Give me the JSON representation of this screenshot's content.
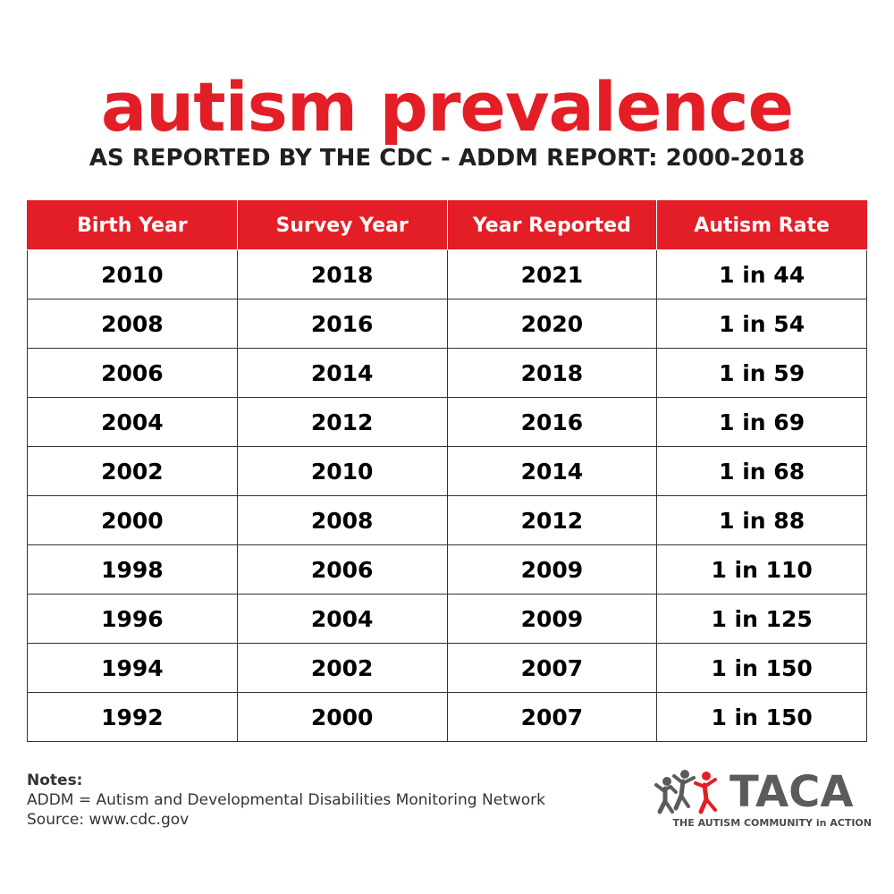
{
  "title": "autism prevalence",
  "subtitle": "AS REPORTED BY THE CDC - ADDM REPORT: 2000-2018",
  "table": {
    "headers": [
      "Birth Year",
      "Survey Year",
      "Year Reported",
      "Autism Rate"
    ],
    "rows": [
      [
        "2010",
        "2018",
        "2021",
        "1 in 44"
      ],
      [
        "2008",
        "2016",
        "2020",
        "1 in 54"
      ],
      [
        "2006",
        "2014",
        "2018",
        "1 in 59"
      ],
      [
        "2004",
        "2012",
        "2016",
        "1 in 69"
      ],
      [
        "2002",
        "2010",
        "2014",
        "1 in 68"
      ],
      [
        "2000",
        "2008",
        "2012",
        "1 in 88"
      ],
      [
        "1998",
        "2006",
        "2009",
        "1 in 110"
      ],
      [
        "1996",
        "2004",
        "2009",
        "1 in 125"
      ],
      [
        "1994",
        "2002",
        "2007",
        "1 in 150"
      ],
      [
        "1992",
        "2000",
        "2007",
        "1 in 150"
      ]
    ]
  },
  "notes": {
    "label": "Notes:",
    "lines": [
      "ADDM = Autism and Developmental Disabilities Monitoring Network",
      "Source: www.cdc.gov"
    ]
  },
  "logo": {
    "wordmark": "TACA",
    "tagline": "THE AUTISM COMMUNITY in ACTION",
    "icon": "people-figures-icon"
  },
  "colors": {
    "accent": "#e41e26",
    "logo_gray": "#5b5b5b",
    "text": "#000000"
  }
}
